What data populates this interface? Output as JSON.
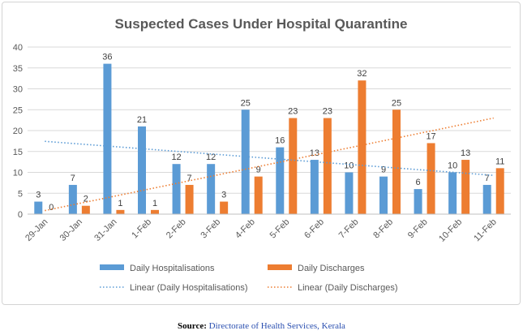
{
  "colors": {
    "hospitalisations": "#5b9bd5",
    "discharges": "#ed7d31",
    "grid": "#d9d9d9",
    "text": "#595959"
  },
  "chart_data": {
    "type": "bar",
    "title": "Suspected Cases Under Hospital Quarantine",
    "categories": [
      "29-Jan",
      "30-Jan",
      "31-Jan",
      "1-Feb",
      "2-Feb",
      "3-Feb",
      "4-Feb",
      "5-Feb",
      "6-Feb",
      "7-Feb",
      "8-Feb",
      "9-Feb",
      "10-Feb",
      "11-Feb"
    ],
    "series": [
      {
        "name": "Daily Hospitalisations",
        "values": [
          3,
          7,
          36,
          21,
          12,
          12,
          25,
          16,
          13,
          10,
          9,
          6,
          10,
          7
        ]
      },
      {
        "name": "Daily Discharges",
        "values": [
          0,
          2,
          1,
          1,
          7,
          3,
          9,
          23,
          23,
          32,
          25,
          17,
          13,
          11
        ]
      }
    ],
    "trendlines": [
      {
        "name": "Linear (Daily Hospitalisations)",
        "series": 0,
        "type": "linear"
      },
      {
        "name": "Linear (Daily Discharges)",
        "series": 1,
        "type": "linear"
      }
    ],
    "ylim": [
      0,
      40
    ],
    "yticks": [
      0,
      5,
      10,
      15,
      20,
      25,
      30,
      35,
      40
    ],
    "xlabel": "",
    "ylabel": "",
    "grid": true,
    "legend": "bottom"
  },
  "source": {
    "label": "Source:",
    "text": "Directorate of Health Services, Kerala"
  }
}
